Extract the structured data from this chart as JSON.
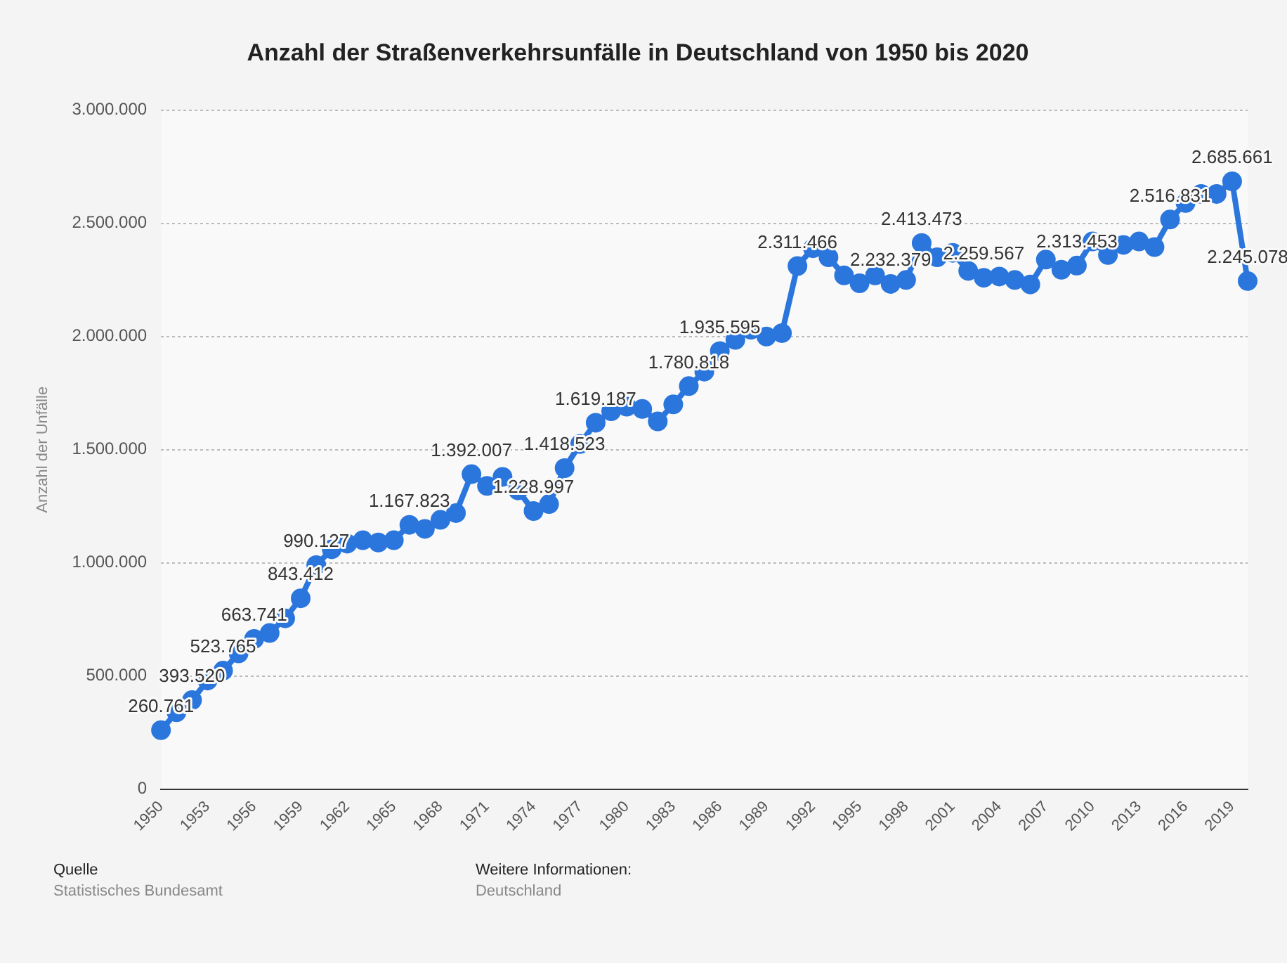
{
  "chart_data": {
    "type": "line",
    "title": "Anzahl der Straßenverkehrsunfälle in Deutschland von 1950 bis 2020",
    "ylabel": "Anzahl der Unfälle",
    "categories": [
      "1950",
      null,
      null,
      "1953",
      null,
      null,
      "1956",
      null,
      null,
      "1959",
      null,
      null,
      "1962",
      null,
      null,
      "1965",
      null,
      null,
      "1968",
      null,
      null,
      "1971",
      null,
      null,
      "1974",
      null,
      null,
      "1977",
      null,
      null,
      "1980",
      null,
      null,
      "1983",
      null,
      null,
      "1986",
      null,
      null,
      "1989",
      null,
      null,
      "1992",
      null,
      null,
      "1995",
      null,
      null,
      "1998",
      null,
      null,
      "2001",
      null,
      null,
      "2004",
      null,
      null,
      "2007",
      null,
      null,
      "2010",
      null,
      null,
      "2013",
      null,
      null,
      "2016",
      null,
      null,
      "2019",
      null
    ],
    "values": [
      260761,
      340000,
      393520,
      480000,
      523765,
      600000,
      663741,
      690000,
      755000,
      843412,
      990127,
      1060000,
      1085000,
      1100000,
      1090000,
      1100000,
      1167823,
      1150000,
      1190000,
      1220000,
      1392007,
      1340000,
      1380000,
      1320000,
      1228997,
      1260000,
      1418523,
      1525000,
      1619187,
      1670000,
      1690000,
      1680000,
      1625000,
      1700000,
      1780818,
      1845000,
      1935595,
      1985000,
      2030000,
      2000000,
      2015000,
      2311466,
      2390000,
      2350000,
      2270000,
      2235000,
      2270000,
      2232379,
      2250000,
      2413473,
      2350000,
      2370000,
      2290000,
      2259567,
      2265000,
      2250000,
      2230000,
      2340000,
      2295000,
      2313453,
      2420000,
      2360000,
      2405000,
      2420000,
      2395000,
      2516831,
      2590000,
      2630000,
      2630000,
      2685661,
      2245078
    ],
    "value_labels": [
      "260.761",
      null,
      "393.520",
      null,
      "523.765",
      null,
      "663.741",
      null,
      null,
      "843.412",
      "990.127",
      null,
      null,
      null,
      null,
      null,
      "1.167.823",
      null,
      null,
      null,
      "1.392.007",
      null,
      null,
      null,
      "1.228.997",
      null,
      "1.418.523",
      null,
      "1.619.187",
      null,
      null,
      null,
      null,
      null,
      "1.780.818",
      null,
      "1.935.595",
      null,
      null,
      null,
      null,
      "2.311.466",
      null,
      null,
      null,
      null,
      null,
      "2.232.379",
      null,
      "2.413.473",
      null,
      null,
      null,
      "2.259.567",
      null,
      null,
      null,
      null,
      null,
      "2.313.453",
      null,
      null,
      null,
      null,
      null,
      "2.516.831",
      null,
      null,
      null,
      "2.685.661",
      "2.245.078"
    ],
    "color": "#2a76dd",
    "marker": "circle",
    "grid": "y",
    "legend": false,
    "ylim": [
      0,
      3000000
    ],
    "yticks": [
      0,
      {
        "value": 500000,
        "label": "500.000"
      },
      {
        "value": 1000000,
        "label": "1.000.000"
      },
      {
        "value": 1500000,
        "label": "1.500.000"
      },
      {
        "value": 2000000,
        "label": "2.000.000"
      },
      {
        "value": 2500000,
        "label": "2.500.000"
      },
      {
        "value": 3000000,
        "label": "3.000.000"
      }
    ],
    "annotations": [
      "Quelle",
      "Statistisches Bundesamt",
      "Weitere Informationen:",
      "Deutschland"
    ]
  }
}
